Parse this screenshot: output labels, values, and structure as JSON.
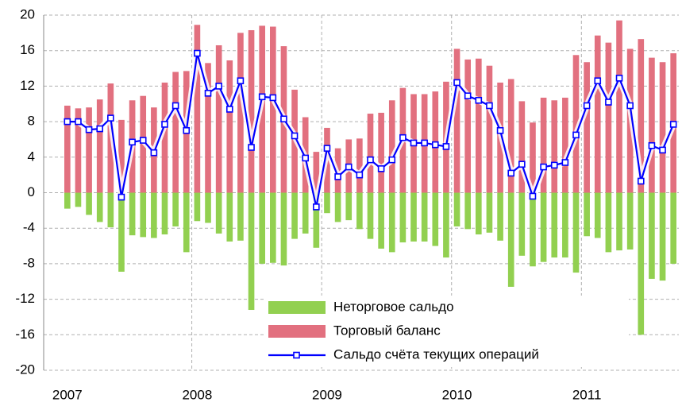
{
  "chart_data": {
    "type": "bar",
    "categories": [
      "2007",
      null,
      null,
      null,
      null,
      null,
      null,
      null,
      null,
      null,
      null,
      null,
      "2008",
      null,
      null,
      null,
      null,
      null,
      null,
      null,
      null,
      null,
      null,
      null,
      "2009",
      null,
      null,
      null,
      null,
      null,
      null,
      null,
      null,
      null,
      null,
      null,
      "2010",
      null,
      null,
      null,
      null,
      null,
      null,
      null,
      null,
      null,
      null,
      null,
      "2011",
      null,
      null,
      null,
      null,
      null,
      null,
      null,
      null
    ],
    "series": [
      {
        "name": "Неторговое сальдо",
        "color": "#92d050",
        "type": "bar",
        "values": [
          -1.8,
          -1.6,
          -2.5,
          -3.3,
          -3.9,
          -8.9,
          -4.8,
          -5.0,
          -5.1,
          -4.7,
          -3.8,
          -6.7,
          -3.2,
          -3.4,
          -4.6,
          -5.5,
          -5.4,
          -13.2,
          -8.0,
          -7.9,
          -8.2,
          -5.2,
          -4.6,
          -6.2,
          -2.3,
          -3.3,
          -3.1,
          -4.1,
          -5.2,
          -6.3,
          -6.7,
          -5.6,
          -5.5,
          -5.5,
          -6.0,
          -7.3,
          -3.8,
          -4.1,
          -4.7,
          -4.5,
          -5.4,
          -10.6,
          -7.1,
          -8.3,
          -7.8,
          -7.3,
          -7.3,
          -9.0,
          -4.9,
          -5.1,
          -6.7,
          -6.5,
          -6.4,
          -16.0,
          -9.7,
          -9.9,
          -8.0
        ]
      },
      {
        "name": "Торговый баланс",
        "color": "#e2707f",
        "type": "bar",
        "values": [
          9.8,
          9.5,
          9.6,
          10.5,
          12.3,
          8.2,
          10.4,
          10.9,
          9.6,
          12.4,
          13.6,
          13.7,
          18.9,
          14.6,
          16.6,
          14.9,
          18.0,
          18.3,
          18.8,
          18.7,
          16.5,
          11.6,
          8.5,
          4.6,
          7.3,
          5.0,
          6.0,
          6.1,
          8.9,
          9.0,
          10.4,
          11.8,
          11.1,
          11.1,
          11.4,
          12.5,
          16.2,
          15.0,
          15.1,
          14.3,
          12.4,
          12.8,
          10.3,
          7.9,
          10.7,
          10.4,
          10.7,
          15.5,
          14.7,
          17.7,
          16.9,
          19.4,
          16.2,
          17.3,
          15.2,
          14.7,
          15.7
        ]
      },
      {
        "name": "Сальдо счёта текущих операций",
        "color": "#0000ff",
        "type": "line",
        "values": [
          8.0,
          8.0,
          7.1,
          7.2,
          8.4,
          -0.5,
          5.7,
          5.9,
          4.5,
          7.7,
          9.8,
          7.0,
          15.7,
          11.2,
          12.0,
          9.4,
          12.6,
          5.1,
          10.8,
          10.7,
          8.3,
          6.4,
          3.9,
          -1.6,
          5.0,
          1.8,
          2.9,
          2.0,
          3.7,
          2.7,
          3.7,
          6.2,
          5.6,
          5.6,
          5.4,
          5.2,
          12.4,
          10.9,
          10.4,
          9.8,
          7.0,
          2.2,
          3.2,
          -0.4,
          2.9,
          3.1,
          3.4,
          6.5,
          9.8,
          12.6,
          10.2,
          12.9,
          9.8,
          1.3,
          5.3,
          4.8,
          7.7
        ]
      }
    ],
    "ylim": [
      -20,
      20
    ],
    "yticks": [
      -20,
      -16,
      -12,
      -8,
      -4,
      0,
      4,
      8,
      12,
      16,
      20
    ],
    "grid": true,
    "legend": "bottom"
  }
}
